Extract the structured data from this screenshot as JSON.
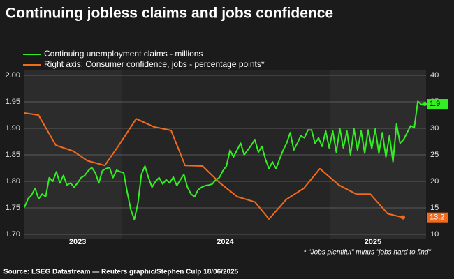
{
  "chart_data": {
    "type": "line",
    "title": "Continuing jobless claims and jobs confidence",
    "footnote": "* \"Jobs plentiful\" minus \"jobs hard to find\"",
    "source": "Source: LSEG Datastream — Reuters graphic/Stephen Culp 18/06/2025",
    "xlim": [
      2022.64,
      2025.36
    ],
    "xticks": [
      {
        "value": 2023,
        "label": "2023"
      },
      {
        "value": 2024,
        "label": "2024"
      },
      {
        "value": 2025,
        "label": "2025"
      }
    ],
    "ylim": [
      1.7,
      2.0
    ],
    "yticks": [
      {
        "value": 1.7,
        "label": "1.70"
      },
      1.75,
      {
        "value": 1.8,
        "label": "1.80"
      },
      1.85,
      {
        "value": 1.9,
        "label": "1.90"
      },
      1.95,
      {
        "value": 2.0,
        "label": "2.00"
      }
    ],
    "y2lim": [
      10,
      40
    ],
    "y2ticks": [
      10,
      15,
      20,
      25,
      30,
      35,
      40
    ],
    "grid": true,
    "series": [
      {
        "name": "Continuing unemployment claims - millions",
        "color": "#33ee22",
        "x": [
          2022.64,
          2022.664,
          2022.688,
          2022.712,
          2022.736,
          2022.76,
          2022.784,
          2022.808,
          2022.832,
          2022.856,
          2022.88,
          2022.904,
          2022.928,
          2022.952,
          2022.976,
          2023.0,
          2023.024,
          2023.048,
          2023.072,
          2023.096,
          2023.12,
          2023.144,
          2023.168,
          2023.192,
          2023.216,
          2023.24,
          2023.264,
          2023.288,
          2023.312,
          2023.336,
          2023.36,
          2023.384,
          2023.408,
          2023.432,
          2023.456,
          2023.48,
          2023.504,
          2023.528,
          2023.552,
          2023.576,
          2023.6,
          2023.624,
          2023.648,
          2023.672,
          2023.696,
          2023.72,
          2023.744,
          2023.768,
          2023.792,
          2023.816,
          2023.84,
          2023.864,
          2023.888,
          2023.912,
          2023.936,
          2023.96,
          2023.984,
          2024.008,
          2024.032,
          2024.056,
          2024.08,
          2024.104,
          2024.128,
          2024.152,
          2024.176,
          2024.2,
          2024.224,
          2024.248,
          2024.272,
          2024.296,
          2024.32,
          2024.344,
          2024.368,
          2024.392,
          2024.416,
          2024.44,
          2024.464,
          2024.488,
          2024.512,
          2024.536,
          2024.56,
          2024.584,
          2024.608,
          2024.632,
          2024.656,
          2024.68,
          2024.704,
          2024.728,
          2024.752,
          2024.776,
          2024.8,
          2024.824,
          2024.848,
          2024.872,
          2024.896,
          2024.92,
          2024.944,
          2024.968,
          2024.992,
          2025.016,
          2025.04,
          2025.064,
          2025.088,
          2025.112,
          2025.136,
          2025.16,
          2025.184,
          2025.208,
          2025.232,
          2025.256,
          2025.28,
          2025.304,
          2025.328,
          2025.352
        ],
        "values": [
          1.751,
          1.767,
          1.774,
          1.787,
          1.767,
          1.776,
          1.771,
          1.807,
          1.8,
          1.818,
          1.797,
          1.811,
          1.793,
          1.797,
          1.789,
          1.797,
          1.807,
          1.811,
          1.82,
          1.826,
          1.816,
          1.797,
          1.82,
          1.824,
          1.826,
          1.807,
          1.821,
          1.818,
          1.816,
          1.78,
          1.747,
          1.728,
          1.758,
          1.813,
          1.829,
          1.807,
          1.789,
          1.8,
          1.807,
          1.795,
          1.803,
          1.797,
          1.808,
          1.792,
          1.803,
          1.813,
          1.789,
          1.776,
          1.771,
          1.784,
          1.789,
          1.792,
          1.793,
          1.795,
          1.803,
          1.807,
          1.82,
          1.829,
          1.859,
          1.846,
          1.859,
          1.872,
          1.85,
          1.859,
          1.868,
          1.879,
          1.855,
          1.866,
          1.842,
          1.824,
          1.837,
          1.824,
          1.842,
          1.859,
          1.872,
          1.892,
          1.859,
          1.872,
          1.886,
          1.882,
          1.897,
          1.897,
          1.872,
          1.882,
          1.866,
          1.895,
          1.863,
          1.895,
          1.855,
          1.9,
          1.863,
          1.895,
          1.85,
          1.899,
          1.859,
          1.895,
          1.853,
          1.897,
          1.862,
          1.899,
          1.853,
          1.892,
          1.846,
          1.886,
          1.837,
          1.908,
          1.872,
          1.879,
          1.892,
          1.905,
          1.901,
          1.951,
          1.945,
          1.946
        ],
        "value_labels": [
          null,
          null,
          null,
          null,
          null,
          null,
          null,
          null,
          null,
          null,
          null,
          null,
          null,
          null,
          null,
          null,
          null,
          null,
          null,
          null,
          null,
          null,
          null,
          null,
          null,
          null,
          null,
          null,
          null,
          null,
          null,
          null,
          null,
          null,
          null,
          null,
          null,
          null,
          null,
          null,
          null,
          null,
          null,
          null,
          null,
          null,
          null,
          null,
          null,
          null,
          null,
          null,
          null,
          null,
          null,
          null,
          null,
          null,
          null,
          null,
          null,
          null,
          null,
          null,
          null,
          null,
          null,
          null,
          null,
          null,
          null,
          null,
          null,
          null,
          null,
          null,
          null,
          null,
          null,
          null,
          null,
          null,
          null,
          null,
          null,
          null,
          null,
          null,
          null,
          null,
          null,
          null,
          null,
          null,
          null,
          null,
          null,
          null,
          null,
          null,
          null,
          null,
          null,
          null,
          null,
          null,
          null,
          null,
          null,
          null,
          null,
          null,
          null,
          "1.9"
        ]
      },
      {
        "name": "Right axis: Consumer confidence, jobs - percentage points*",
        "color": "#f26b1d",
        "axis": "y2",
        "x": [
          2022.64,
          2022.735,
          2022.853,
          2022.971,
          2023.066,
          2023.184,
          2023.279,
          2023.397,
          2023.515,
          2023.633,
          2023.728,
          2023.846,
          2023.964,
          2024.082,
          2024.201,
          2024.296,
          2024.414,
          2024.532,
          2024.641,
          2024.769,
          2024.887,
          2024.982,
          2025.1,
          2025.204
        ],
        "values": [
          32.9,
          32.5,
          26.8,
          25.7,
          23.9,
          23.0,
          26.8,
          31.8,
          30.3,
          29.6,
          23.0,
          22.9,
          19.7,
          17.1,
          16.1,
          12.9,
          16.6,
          18.7,
          22.4,
          19.3,
          17.6,
          17.6,
          13.9,
          13.2
        ]
      }
    ]
  }
}
